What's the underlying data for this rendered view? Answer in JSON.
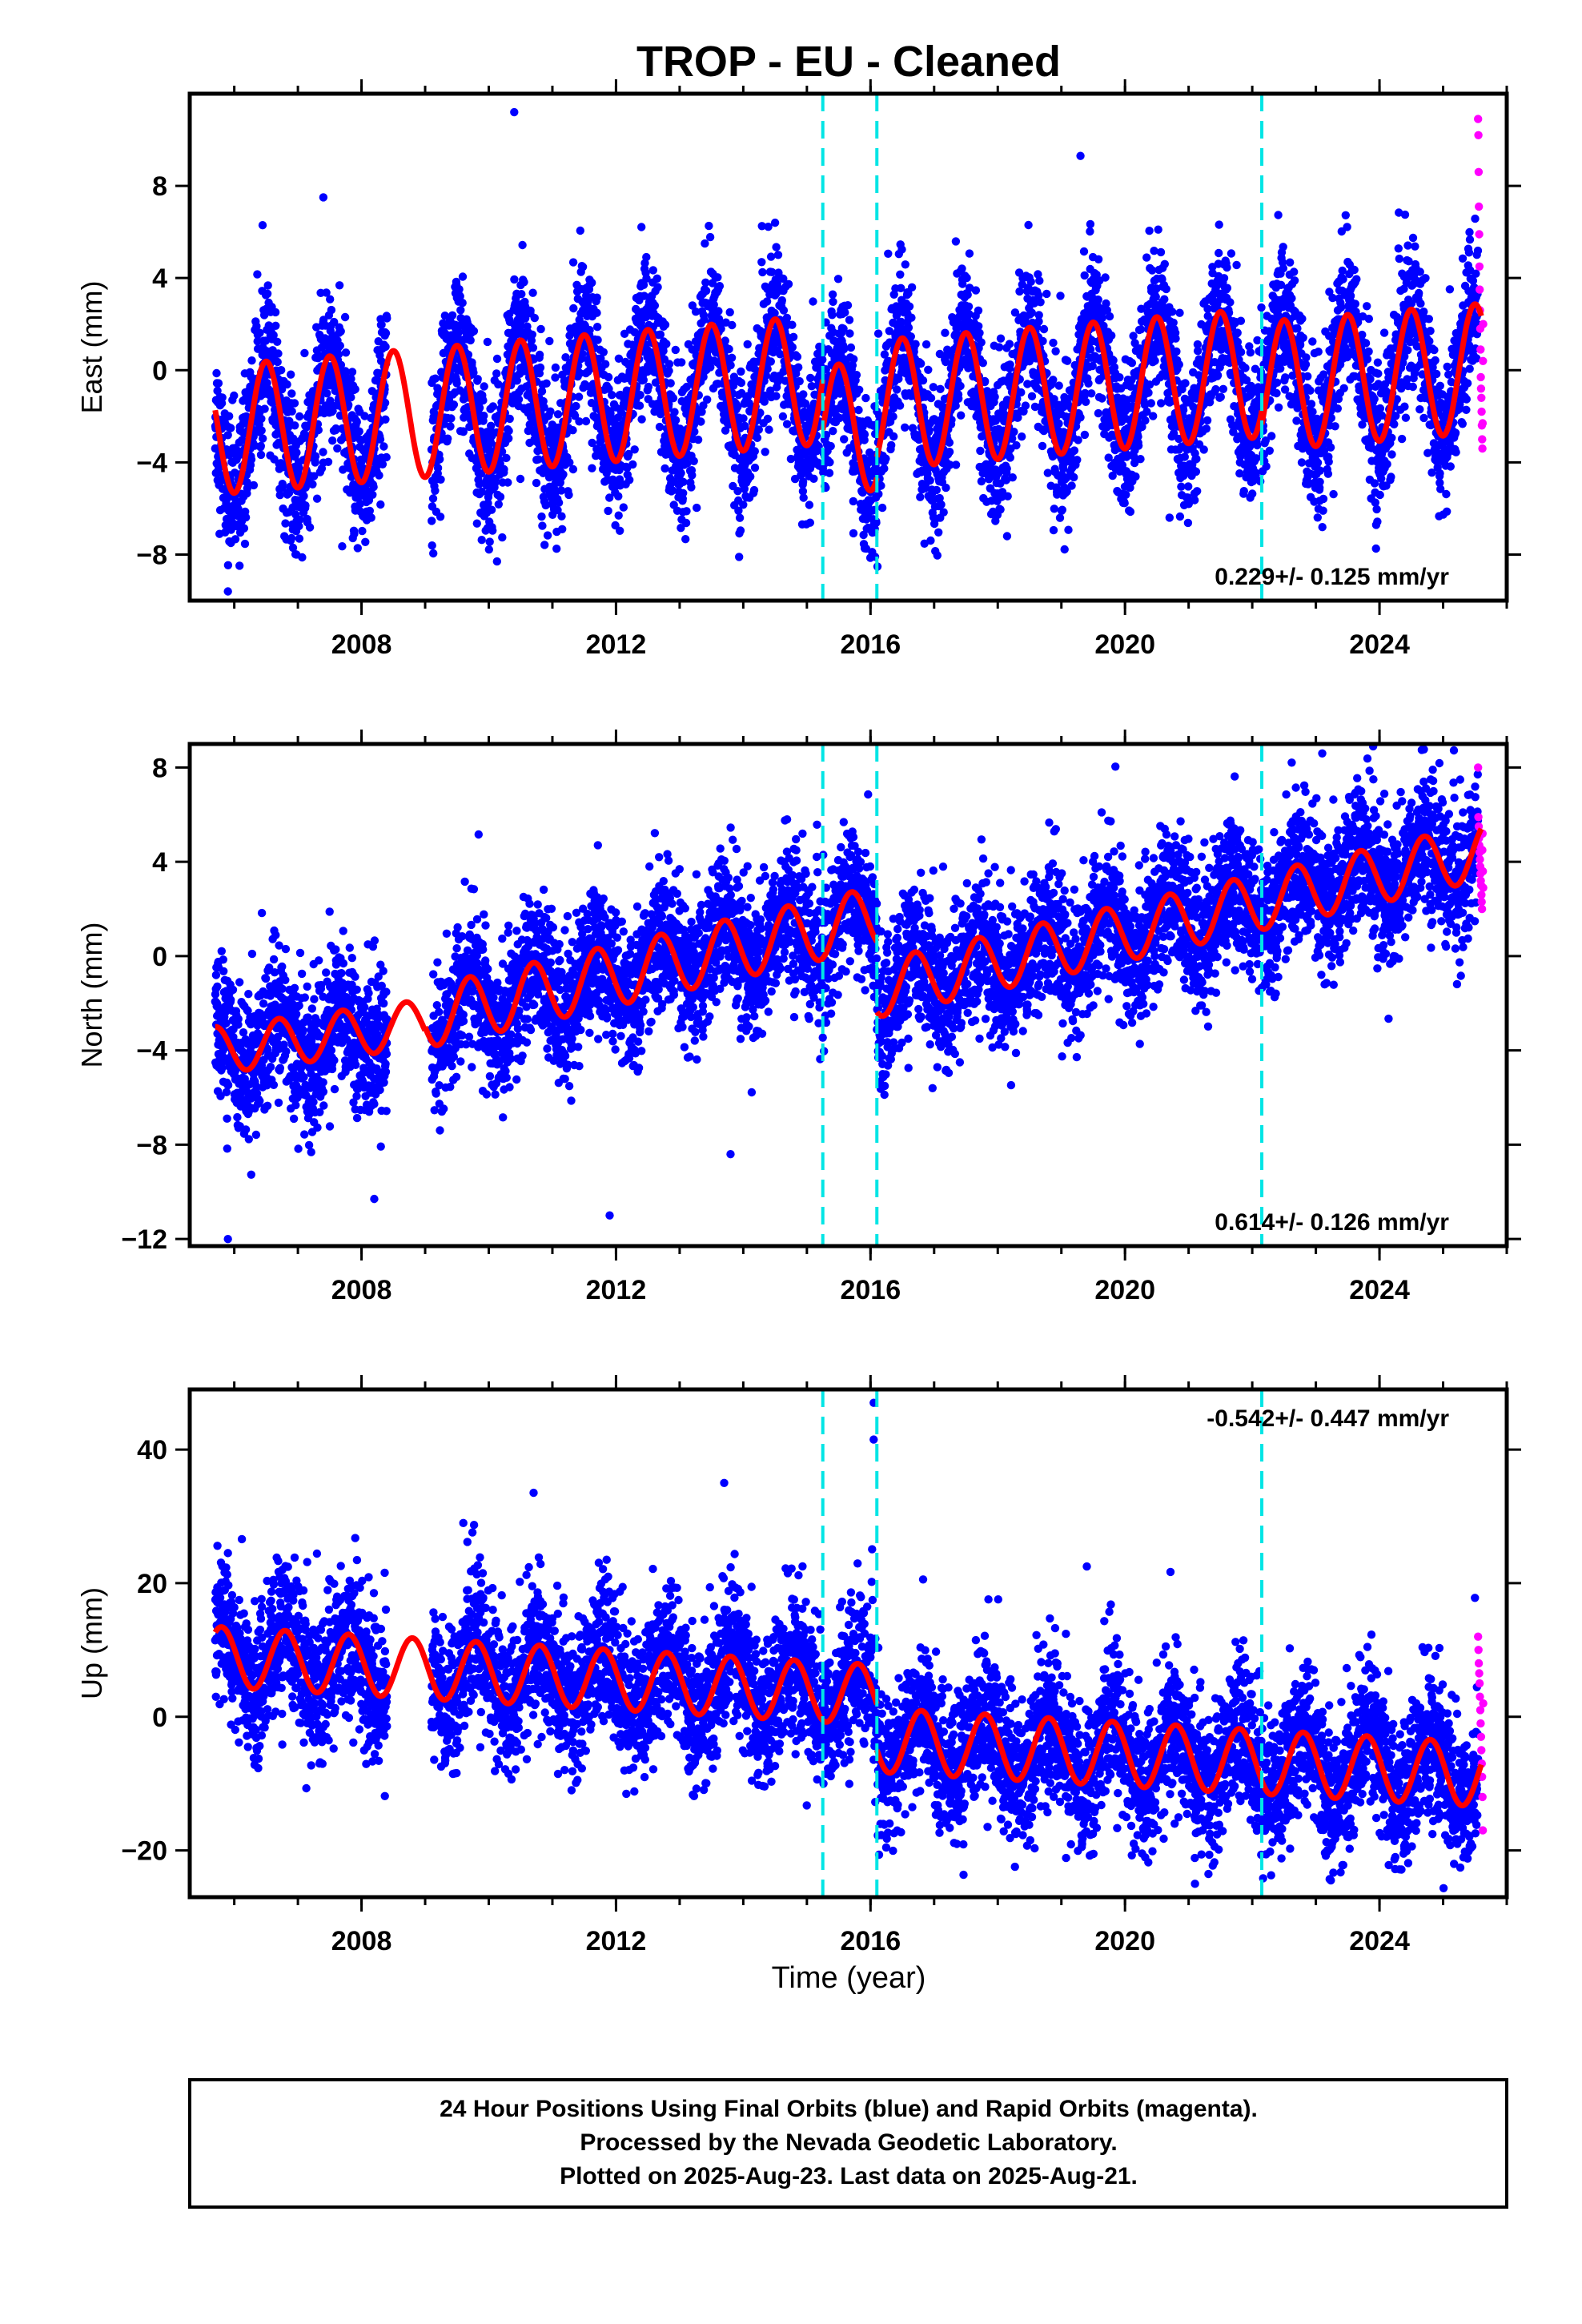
{
  "figure": {
    "title": "TROP  - EU - Cleaned",
    "footnote": [
      "24 Hour Positions Using Final Orbits (blue) and Rapid Orbits (magenta).",
      "Processed by the Nevada Geodetic Laboratory.",
      "Plotted on 2025-Aug-23. Last data on 2025-Aug-21."
    ]
  },
  "colors": {
    "final_points": "#0000ff",
    "rapid_points": "#ff00ff",
    "model_line": "#ff0000",
    "event_lines": "#00e5e5",
    "frame": "#000000"
  },
  "chart_data": [
    {
      "type": "scatter",
      "panel": "east",
      "title": "TROP  - EU - Cleaned",
      "ylabel": "East (mm)",
      "xlabel": "",
      "xlim": [
        2005.3,
        2026.0
      ],
      "ylim": [
        -10.0,
        12.0
      ],
      "xticks": [
        2008,
        2012,
        2016,
        2020,
        2024
      ],
      "xtick_labels": [
        "2008",
        "2012",
        "2016",
        "2020",
        "2024"
      ],
      "yticks": [
        -8,
        -4,
        0,
        4,
        8
      ],
      "ytick_labels": [
        "−8",
        "−4",
        "0",
        "4",
        "8"
      ],
      "rate_label": "0.229+/- 0.125 mm/yr",
      "rate_position": "bottom-right",
      "event_lines_x": [
        2015.25,
        2016.1,
        2022.15
      ],
      "data_gap": [
        2008.4,
        2009.1
      ],
      "model": {
        "name": "model",
        "segments": [
          {
            "t0": 2005.7,
            "t1": 2015.25,
            "offset": -2.6,
            "trend": 0.229,
            "seasonal_amp": 2.8,
            "phase": 0.25
          },
          {
            "t0": 2015.25,
            "t1": 2016.1,
            "offset": -2.6,
            "trend": 0.229,
            "seasonal_amp": 2.8,
            "phase": 0.25
          },
          {
            "t0": 2016.1,
            "t1": 2022.15,
            "offset": -1.5,
            "trend": 0.229,
            "seasonal_amp": 2.8,
            "phase": 0.25
          },
          {
            "t0": 2022.15,
            "t1": 2025.6,
            "offset": -0.7,
            "trend": 0.229,
            "seasonal_amp": 2.8,
            "phase": 0.25
          }
        ]
      },
      "series": [
        {
          "name": "Final Orbits (blue)",
          "t_start": 2005.7,
          "t_end": 2025.55,
          "scatter_sd": 1.6
        },
        {
          "name": "Rapid Orbits (magenta)",
          "t_start": 2025.55,
          "t_end": 2025.63,
          "values": [
            10.9,
            10.2,
            8.6,
            7.1,
            5.9,
            4.5,
            3.5,
            2.6,
            1.8,
            0.9,
            -0.3,
            -0.8,
            -1.2,
            -1.8,
            -2.4,
            -3.0,
            -3.4,
            -2.3,
            0.4,
            2.0
          ]
        }
      ],
      "outliers": [
        {
          "x": 2010.4,
          "y": 11.2
        },
        {
          "x": 2007.4,
          "y": 7.5
        },
        {
          "x": 2014.5,
          "y": 6.4
        },
        {
          "x": 2019.3,
          "y": 9.3
        },
        {
          "x": 2005.9,
          "y": -9.6
        },
        {
          "x": 2020.7,
          "y": -6.4
        }
      ]
    },
    {
      "type": "scatter",
      "panel": "north",
      "ylabel": "North (mm)",
      "xlabel": "",
      "xlim": [
        2005.3,
        2026.0
      ],
      "ylim": [
        -12.3,
        9.0
      ],
      "xticks": [
        2008,
        2012,
        2016,
        2020,
        2024
      ],
      "xtick_labels": [
        "2008",
        "2012",
        "2016",
        "2020",
        "2024"
      ],
      "yticks": [
        -12,
        -8,
        -4,
        0,
        4,
        8
      ],
      "ytick_labels": [
        "−12",
        "−8",
        "−4",
        "0",
        "4",
        "8"
      ],
      "rate_label": "0.614+/- 0.126 mm/yr",
      "rate_position": "bottom-right",
      "event_lines_x": [
        2015.25,
        2016.1,
        2022.15
      ],
      "data_gap": [
        2008.4,
        2009.1
      ],
      "model": {
        "name": "model",
        "segments": [
          {
            "t0": 2005.7,
            "t1": 2009.0,
            "offset": -4.0,
            "trend": 0.35,
            "seasonal_amp": 1.0,
            "phase": 0.45
          },
          {
            "t0": 2009.0,
            "t1": 2016.1,
            "offset": -2.6,
            "trend": 0.6,
            "seasonal_amp": 1.3,
            "phase": 0.45
          },
          {
            "t0": 2016.1,
            "t1": 2025.6,
            "offset": -1.4,
            "trend": 0.614,
            "seasonal_amp": 1.2,
            "phase": 0.45
          }
        ]
      },
      "series": [
        {
          "name": "Final Orbits (blue)",
          "t_start": 2005.7,
          "t_end": 2025.55,
          "scatter_sd": 1.5
        },
        {
          "name": "Rapid Orbits (magenta)",
          "t_start": 2025.55,
          "t_end": 2025.63,
          "values": [
            8.0,
            5.9,
            5.5,
            5.0,
            4.7,
            4.4,
            4.1,
            3.8,
            3.5,
            3.2,
            3.0,
            2.6,
            2.3,
            2.0,
            4.5,
            5.2,
            3.6,
            2.9
          ]
        }
      ],
      "outliers": [
        {
          "x": 2005.9,
          "y": -12.0
        },
        {
          "x": 2011.9,
          "y": -11.0
        },
        {
          "x": 2013.8,
          "y": -8.4
        },
        {
          "x": 2023.1,
          "y": 8.6
        },
        {
          "x": 2023.9,
          "y": 8.9
        },
        {
          "x": 2008.2,
          "y": -10.3
        }
      ]
    },
    {
      "type": "scatter",
      "panel": "up",
      "ylabel": "Up (mm)",
      "xlabel": "Time (year)",
      "xlim": [
        2005.3,
        2026.0
      ],
      "ylim": [
        -27.0,
        49.0
      ],
      "xticks": [
        2008,
        2012,
        2016,
        2020,
        2024
      ],
      "xtick_labels": [
        "2008",
        "2012",
        "2016",
        "2020",
        "2024"
      ],
      "yticks": [
        -20,
        0,
        20,
        40
      ],
      "ytick_labels": [
        "−20",
        "0",
        "20",
        "40"
      ],
      "rate_label": "-0.542+/- 0.447 mm/yr",
      "rate_position": "top-right",
      "event_lines_x": [
        2015.25,
        2016.1,
        2022.15
      ],
      "data_gap": [
        2008.4,
        2009.1
      ],
      "model": {
        "name": "model",
        "segments": [
          {
            "t0": 2005.7,
            "t1": 2016.1,
            "offset": 9.0,
            "trend": -0.55,
            "seasonal_amp": 4.5,
            "phase": 0.55
          },
          {
            "t0": 2016.1,
            "t1": 2025.6,
            "offset": -3.5,
            "trend": -0.542,
            "seasonal_amp": 4.8,
            "phase": 0.55
          }
        ]
      },
      "series": [
        {
          "name": "Final Orbits (blue)",
          "t_start": 2005.7,
          "t_end": 2025.55,
          "scatter_sd": 5.5
        },
        {
          "name": "Rapid Orbits (magenta)",
          "t_start": 2025.55,
          "t_end": 2025.63,
          "values": [
            12.0,
            10.0,
            8.0,
            6.5,
            5.0,
            3.0,
            1.0,
            -1.0,
            -3.0,
            -5.0,
            -7.0,
            -9.0,
            -12.0,
            -17.0,
            2.0
          ]
        }
      ],
      "outliers": [
        {
          "x": 2016.05,
          "y": 47.0
        },
        {
          "x": 2016.05,
          "y": 41.5
        },
        {
          "x": 2013.7,
          "y": 35.0
        },
        {
          "x": 2009.6,
          "y": 29.0
        },
        {
          "x": 2019.4,
          "y": 22.5
        },
        {
          "x": 2021.1,
          "y": -25.0
        },
        {
          "x": 2005.9,
          "y": 24.5
        },
        {
          "x": 2025.5,
          "y": 17.8
        }
      ]
    }
  ]
}
